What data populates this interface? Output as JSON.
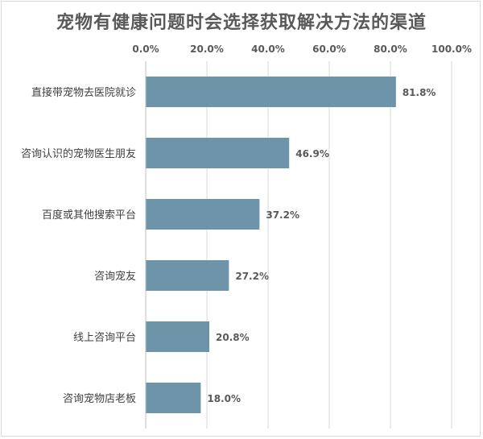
{
  "chart_data": {
    "type": "bar",
    "orientation": "horizontal",
    "title": "宠物有健康问题时会选择获取解决方法的渠道",
    "xlabel": "",
    "ylabel": "",
    "categories": [
      "直接带宠物去医院就诊",
      "咨询认识的宠物医生朋友",
      "百度或其他搜索平台",
      "咨询宠友",
      "线上咨询平台",
      "咨询宠物店老板"
    ],
    "values": [
      81.8,
      46.9,
      37.2,
      27.2,
      20.8,
      18.0
    ],
    "value_labels": [
      "81.8%",
      "46.9%",
      "37.2%",
      "27.2%",
      "20.8%",
      "18.0%"
    ],
    "xlim": [
      0,
      100
    ],
    "x_ticks": [
      "0.0%",
      "20.0%",
      "40.0%",
      "60.0%",
      "80.0%",
      "100.0%"
    ],
    "x_axis_position": "top",
    "grid": true,
    "legend": "none",
    "colors": {
      "bar": "#6d94a8",
      "grid": "#d9d9d9",
      "text": "#595959"
    }
  }
}
